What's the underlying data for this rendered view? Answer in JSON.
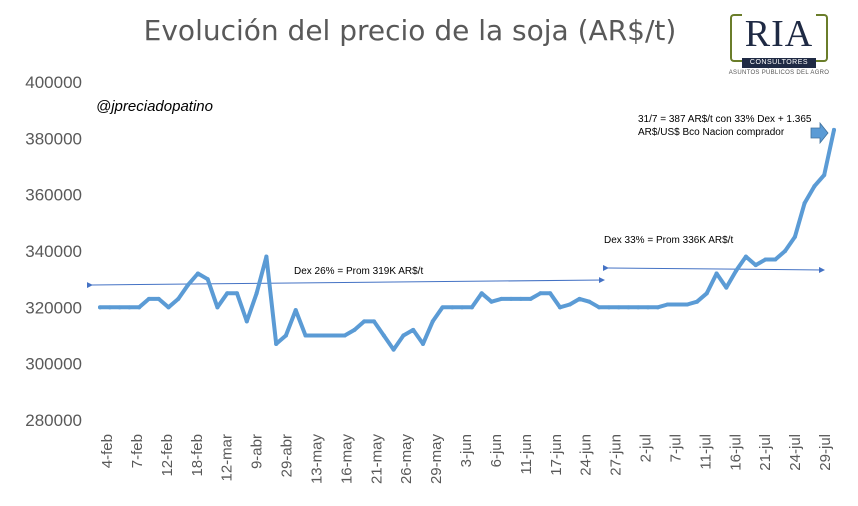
{
  "chart_data": {
    "type": "line",
    "title": "Evolución del precio de la soja (AR$/t)",
    "ylim": [
      280000,
      400000
    ],
    "yticks": [
      "280000",
      "300000",
      "320000",
      "340000",
      "360000",
      "380000",
      "400000"
    ],
    "tick_labels": [
      "4-feb",
      "7-feb",
      "12-feb",
      "18-feb",
      "12-mar",
      "9-abr",
      "29-abr",
      "13-may",
      "16-may",
      "21-may",
      "26-may",
      "29-may",
      "3-jun",
      "6-jun",
      "11-jun",
      "17-jun",
      "24-jun",
      "27-jun",
      "2-jul",
      "7-jul",
      "11-jul",
      "16-jul",
      "21-jul",
      "24-jul",
      "29-jul"
    ],
    "color": "#5b9bd5",
    "values": [
      320000,
      320000,
      320000,
      320000,
      320000,
      323000,
      323000,
      320000,
      323000,
      328000,
      332000,
      330000,
      320000,
      325000,
      325000,
      315000,
      325000,
      338000,
      307000,
      310000,
      319000,
      310000,
      310000,
      310000,
      310000,
      310000,
      312000,
      315000,
      315000,
      310000,
      305000,
      310000,
      312000,
      307000,
      315000,
      320000,
      320000,
      320000,
      320000,
      325000,
      322000,
      323000,
      323000,
      323000,
      323000,
      325000,
      325000,
      320000,
      321000,
      323000,
      322000,
      320000,
      320000,
      320000,
      320000,
      320000,
      320000,
      320000,
      321000,
      321000,
      321000,
      322000,
      325000,
      332000,
      327000,
      333000,
      338000,
      335000,
      337000,
      337000,
      340000,
      345000,
      357000,
      363000,
      367000,
      383000
    ]
  },
  "annotations": {
    "handle": "@jpreciadopatino",
    "period1": "Dex 26% =  Prom 319K AR$/t",
    "period2": "Dex 33% =  Prom 336K AR$/t",
    "latest_line1": "31/7 = 387 AR$/t con 33% Dex + 1.365",
    "latest_line2": "AR$/US$ Bco Nacion comprador"
  },
  "logo": {
    "name": "RIA",
    "band": "CONSULTORES",
    "tagline": "ASUNTOS PÚBLICOS DEL AGRO"
  }
}
